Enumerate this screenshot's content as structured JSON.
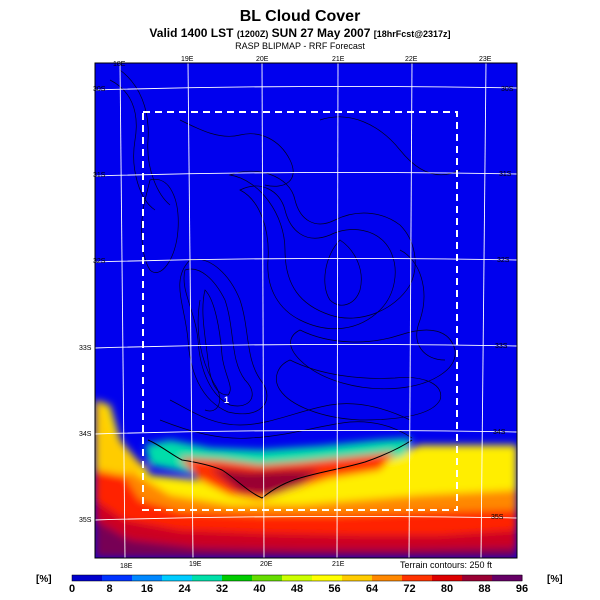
{
  "header": {
    "title": "BL Cloud Cover",
    "subtitle_main": "Valid 1400 LST",
    "subtitle_small1": "(1200Z)",
    "subtitle_date": "SUN 27 May 2007",
    "subtitle_small2": "[18hrFcst@2317z]",
    "subtitle2": "RASP BLIPMAP - RRF Forecast"
  },
  "map": {
    "lon_labels_top": [
      "18E",
      "19E",
      "20E",
      "21E",
      "22E",
      "23E"
    ],
    "lon_labels_bottom": [
      "18E",
      "19E",
      "20E",
      "21E"
    ],
    "lat_labels_left": [
      "30S",
      "31S",
      "32S",
      "33S",
      "34S",
      "35S"
    ],
    "lat_labels_right": [
      "30S",
      "31S",
      "32S",
      "33S",
      "34S",
      "35S"
    ],
    "point_label": "1",
    "terrain_note": "Terrain contours: 250 ft"
  },
  "colorbar": {
    "unit_left": "[%]",
    "unit_right": "[%]",
    "ticks": [
      "0",
      "8",
      "16",
      "24",
      "32",
      "40",
      "48",
      "56",
      "64",
      "72",
      "80",
      "88",
      "96"
    ],
    "colors": [
      "#0000cc",
      "#0033ff",
      "#0088ff",
      "#00ccff",
      "#00e0aa",
      "#00cc00",
      "#66dd00",
      "#ccff00",
      "#ffff00",
      "#ffcc00",
      "#ff8800",
      "#ff3300",
      "#dd0000",
      "#990033",
      "#660066"
    ]
  }
}
